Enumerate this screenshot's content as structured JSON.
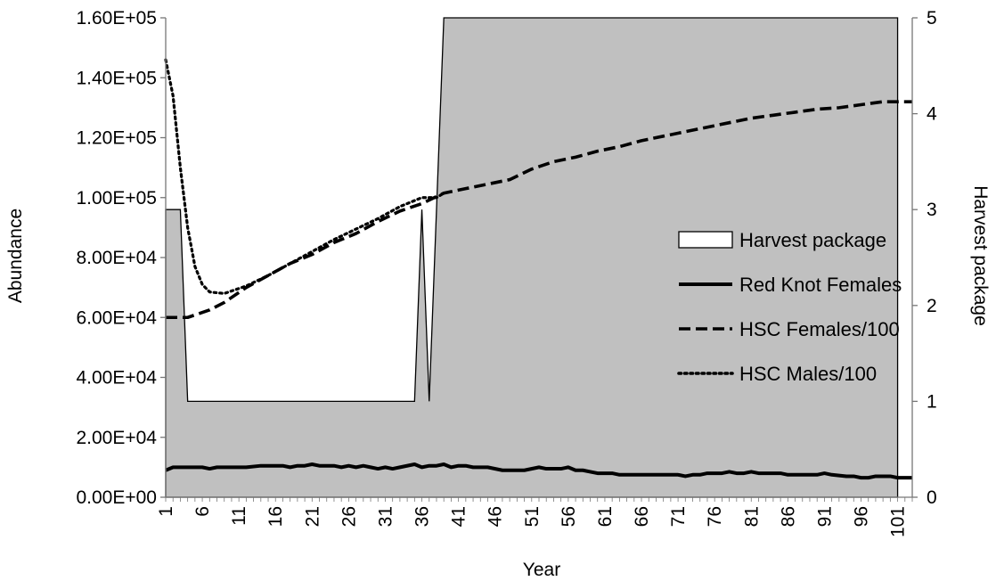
{
  "chart_data": {
    "type": "line",
    "xlabel": "Year",
    "ylabel": "Abundance",
    "y2label": "Harvest package",
    "ylim": [
      0,
      160000
    ],
    "y2lim": [
      0,
      5
    ],
    "y_ticks": [
      0,
      20000,
      40000,
      60000,
      80000,
      100000,
      120000,
      140000,
      160000
    ],
    "y_tick_labels": [
      "0.00E+00",
      "2.00E+04",
      "4.00E+04",
      "6.00E+04",
      "8.00E+04",
      "1.00E+05",
      "1.20E+05",
      "1.40E+05",
      "1.60E+05"
    ],
    "y2_ticks": [
      0,
      1,
      2,
      3,
      4,
      5
    ],
    "y2_tick_labels": [
      "0",
      "1",
      "2",
      "3",
      "4",
      "5"
    ],
    "x_tick_labels": [
      "1",
      "6",
      "11",
      "16",
      "21",
      "26",
      "31",
      "36",
      "41",
      "46",
      "51",
      "56",
      "61",
      "66",
      "71",
      "76",
      "81",
      "86",
      "91",
      "96",
      "101"
    ],
    "grid": false,
    "legend_position": "right",
    "series": [
      {
        "name": "Harvest package",
        "type": "area",
        "axis": "secondary",
        "color": "#c0c0c0",
        "points": [
          [
            1,
            3
          ],
          [
            3,
            3
          ],
          [
            4,
            1
          ],
          [
            35,
            1
          ],
          [
            36,
            3
          ],
          [
            37,
            1
          ],
          [
            39,
            5
          ],
          [
            101,
            5
          ]
        ]
      },
      {
        "name": "Red Knot Females",
        "type": "line",
        "axis": "primary",
        "style": "solid",
        "color": "#000000",
        "points": [
          [
            1,
            9000
          ],
          [
            2,
            10000
          ],
          [
            4,
            10000
          ],
          [
            6,
            10000
          ],
          [
            7,
            9500
          ],
          [
            8,
            10000
          ],
          [
            12,
            10000
          ],
          [
            14,
            10500
          ],
          [
            17,
            10500
          ],
          [
            18,
            10000
          ],
          [
            19,
            10500
          ],
          [
            20,
            10500
          ],
          [
            21,
            11000
          ],
          [
            22,
            10500
          ],
          [
            24,
            10500
          ],
          [
            25,
            10000
          ],
          [
            26,
            10500
          ],
          [
            27,
            10000
          ],
          [
            28,
            10500
          ],
          [
            29,
            10000
          ],
          [
            30,
            9500
          ],
          [
            31,
            10000
          ],
          [
            32,
            9500
          ],
          [
            33,
            10000
          ],
          [
            35,
            11000
          ],
          [
            36,
            10000
          ],
          [
            37,
            10500
          ],
          [
            38,
            10500
          ],
          [
            39,
            11000
          ],
          [
            40,
            10000
          ],
          [
            41,
            10500
          ],
          [
            42,
            10500
          ],
          [
            43,
            10000
          ],
          [
            45,
            10000
          ],
          [
            47,
            9000
          ],
          [
            50,
            9000
          ],
          [
            52,
            10000
          ],
          [
            53,
            9500
          ],
          [
            55,
            9500
          ],
          [
            56,
            10000
          ],
          [
            57,
            9000
          ],
          [
            58,
            9000
          ],
          [
            59,
            8500
          ],
          [
            60,
            8000
          ],
          [
            62,
            8000
          ],
          [
            63,
            7500
          ],
          [
            71,
            7500
          ],
          [
            72,
            7000
          ],
          [
            73,
            7500
          ],
          [
            74,
            7500
          ],
          [
            75,
            8000
          ],
          [
            77,
            8000
          ],
          [
            78,
            8500
          ],
          [
            79,
            8000
          ],
          [
            80,
            8000
          ],
          [
            81,
            8500
          ],
          [
            82,
            8000
          ],
          [
            85,
            8000
          ],
          [
            86,
            7500
          ],
          [
            90,
            7500
          ],
          [
            91,
            8000
          ],
          [
            92,
            7500
          ],
          [
            94,
            7000
          ],
          [
            95,
            7000
          ],
          [
            96,
            6500
          ],
          [
            97,
            6500
          ],
          [
            98,
            7000
          ],
          [
            100,
            7000
          ],
          [
            101,
            6500
          ],
          [
            103,
            6500
          ]
        ]
      },
      {
        "name": "HSC Females/100",
        "type": "line",
        "axis": "primary",
        "style": "dashed",
        "color": "#000000",
        "points": [
          [
            1,
            60000
          ],
          [
            4,
            60000
          ],
          [
            7,
            62500
          ],
          [
            9,
            65000
          ],
          [
            12,
            70000
          ],
          [
            15,
            74000
          ],
          [
            18,
            78000
          ],
          [
            21,
            81000
          ],
          [
            24,
            85000
          ],
          [
            27,
            88000
          ],
          [
            30,
            92000
          ],
          [
            33,
            95500
          ],
          [
            36,
            98000
          ],
          [
            39,
            101500
          ],
          [
            42,
            103000
          ],
          [
            45,
            104500
          ],
          [
            48,
            106000
          ],
          [
            51,
            109500
          ],
          [
            54,
            112000
          ],
          [
            57,
            113500
          ],
          [
            60,
            115500
          ],
          [
            63,
            117000
          ],
          [
            66,
            119000
          ],
          [
            69,
            120500
          ],
          [
            72,
            122000
          ],
          [
            75,
            123500
          ],
          [
            78,
            125000
          ],
          [
            81,
            126500
          ],
          [
            84,
            127500
          ],
          [
            87,
            128500
          ],
          [
            90,
            129500
          ],
          [
            93,
            130000
          ],
          [
            96,
            131000
          ],
          [
            99,
            132000
          ],
          [
            103,
            132000
          ]
        ]
      },
      {
        "name": "HSC Males/100",
        "type": "line",
        "axis": "primary",
        "style": "dotted",
        "color": "#000000",
        "points": [
          [
            1,
            146000
          ],
          [
            2,
            134000
          ],
          [
            3,
            110000
          ],
          [
            4,
            90000
          ],
          [
            5,
            77000
          ],
          [
            6,
            71000
          ],
          [
            7,
            68500
          ],
          [
            9,
            68000
          ],
          [
            12,
            70500
          ],
          [
            15,
            74000
          ],
          [
            18,
            78000
          ],
          [
            21,
            82000
          ],
          [
            24,
            86000
          ],
          [
            27,
            89500
          ],
          [
            30,
            93000
          ],
          [
            33,
            97000
          ],
          [
            35,
            99000
          ],
          [
            36,
            100000
          ],
          [
            38,
            100000
          ],
          [
            39,
            101500
          ]
        ]
      }
    ]
  }
}
